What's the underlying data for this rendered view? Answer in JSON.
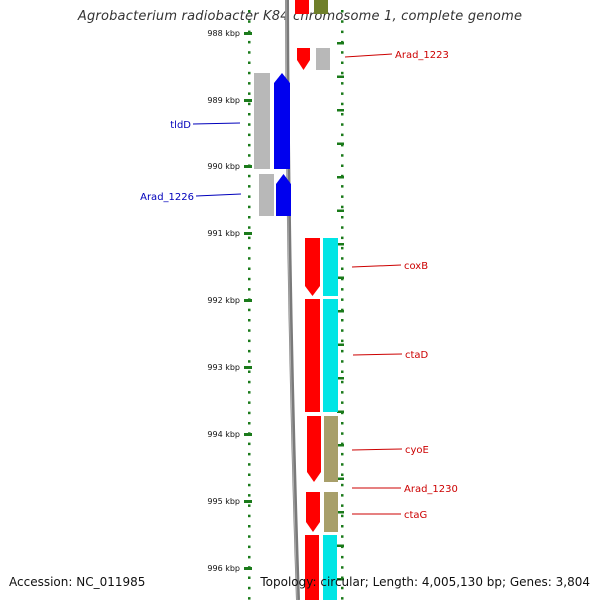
{
  "title": "Agrobacterium radiobacter K84 chromosome 1, complete genome",
  "footer": {
    "accession": "Accession: NC_011985",
    "summary": "Topology: circular; Length: 4,005,130 bp; Genes: 3,804"
  },
  "colors": {
    "backbone": "#808080",
    "tick": "#1a7a1a",
    "red": "#ff0000",
    "blue": "#0000ee",
    "gray": "#b8b8b8",
    "cyan": "#00e5e5",
    "olive": "#a89f6a",
    "darkolive": "#6f7f2a",
    "label_red": "#cc0000",
    "label_blue": "#0000bb"
  },
  "ruler": {
    "ticks": [
      "988 kbp",
      "989 kbp",
      "990 kbp",
      "991 kbp",
      "992 kbp",
      "993 kbp",
      "994 kbp",
      "995 kbp",
      "996 kbp"
    ]
  },
  "genes": [
    {
      "name": "Arad_1223",
      "side": "right",
      "color": "red"
    },
    {
      "name": "tldD",
      "side": "left",
      "color": "blue"
    },
    {
      "name": "Arad_1226",
      "side": "left",
      "color": "blue"
    },
    {
      "name": "coxB",
      "side": "right",
      "color": "red"
    },
    {
      "name": "ctaD",
      "side": "right",
      "color": "red"
    },
    {
      "name": "cyoE",
      "side": "right",
      "color": "red"
    },
    {
      "name": "Arad_1230",
      "side": "right",
      "color": "red"
    },
    {
      "name": "ctaG",
      "side": "right",
      "color": "red"
    }
  ]
}
